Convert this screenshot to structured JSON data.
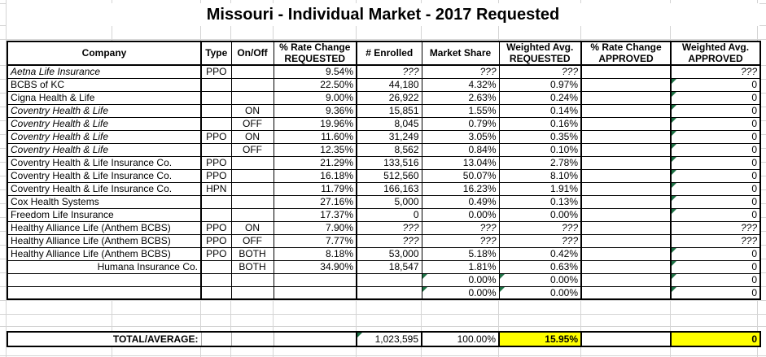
{
  "title": "Missouri - Individual Market - 2017 Requested",
  "colors": {
    "highlight": "#FFFF00",
    "triangle": "#1E7145",
    "gridline": "#D4D4D4"
  },
  "table": {
    "headers": [
      "Company",
      "Type",
      "On/Off",
      "% Rate Change\nREQUESTED",
      "# Enrolled",
      "Market Share",
      "Weighted Avg.\nREQUESTED",
      "% Rate Change\nAPPROVED",
      "Weighted Avg.\nAPPROVED"
    ],
    "rows": [
      {
        "company": "Aetna Life Insurance",
        "type": "PPO",
        "onoff": "",
        "rate_req": "9.54%",
        "enrolled": "???",
        "share": "???",
        "wavg_req": "???",
        "rate_app": "",
        "wavg_app": "???",
        "italic": true,
        "triangles": []
      },
      {
        "company": "BCBS of KC",
        "type": "",
        "onoff": "",
        "rate_req": "22.50%",
        "enrolled": "44,180",
        "share": "4.32%",
        "wavg_req": "0.97%",
        "rate_app": "",
        "wavg_app": "0",
        "italic": false,
        "triangles": [
          "wavg_app"
        ]
      },
      {
        "company": "Cigna Health & Life",
        "type": "",
        "onoff": "",
        "rate_req": "9.00%",
        "enrolled": "26,922",
        "share": "2.63%",
        "wavg_req": "0.24%",
        "rate_app": "",
        "wavg_app": "0",
        "italic": false,
        "triangles": [
          "wavg_app"
        ]
      },
      {
        "company": "Coventry Health & Life",
        "type": "",
        "onoff": "ON",
        "rate_req": "9.36%",
        "enrolled": "15,851",
        "share": "1.55%",
        "wavg_req": "0.14%",
        "rate_app": "",
        "wavg_app": "0",
        "italic": true,
        "triangles": [
          "wavg_app"
        ]
      },
      {
        "company": "Coventry Health & Life",
        "type": "",
        "onoff": "OFF",
        "rate_req": "19.96%",
        "enrolled": "8,045",
        "share": "0.79%",
        "wavg_req": "0.16%",
        "rate_app": "",
        "wavg_app": "0",
        "italic": true,
        "triangles": [
          "wavg_app"
        ]
      },
      {
        "company": "Coventry Health & Life",
        "type": "PPO",
        "onoff": "ON",
        "rate_req": "11.60%",
        "enrolled": "31,249",
        "share": "3.05%",
        "wavg_req": "0.35%",
        "rate_app": "",
        "wavg_app": "0",
        "italic": true,
        "triangles": [
          "wavg_app"
        ]
      },
      {
        "company": "Coventry Health & Life",
        "type": "",
        "onoff": "OFF",
        "rate_req": "12.35%",
        "enrolled": "8,562",
        "share": "0.84%",
        "wavg_req": "0.10%",
        "rate_app": "",
        "wavg_app": "0",
        "italic": true,
        "triangles": [
          "wavg_app"
        ]
      },
      {
        "company": "Coventry Health & Life Insurance Co.",
        "type": "PPO",
        "onoff": "",
        "rate_req": "21.29%",
        "enrolled": "133,516",
        "share": "13.04%",
        "wavg_req": "2.78%",
        "rate_app": "",
        "wavg_app": "0",
        "italic": false,
        "triangles": [
          "wavg_app"
        ]
      },
      {
        "company": "Coventry Health & Life Insurance Co.",
        "type": "PPO",
        "onoff": "",
        "rate_req": "16.18%",
        "enrolled": "512,560",
        "share": "50.07%",
        "wavg_req": "8.10%",
        "rate_app": "",
        "wavg_app": "0",
        "italic": false,
        "triangles": [
          "wavg_app"
        ]
      },
      {
        "company": "Coventry Health & Life Insurance Co.",
        "type": "HPN",
        "onoff": "",
        "rate_req": "11.79%",
        "enrolled": "166,163",
        "share": "16.23%",
        "wavg_req": "1.91%",
        "rate_app": "",
        "wavg_app": "0",
        "italic": false,
        "triangles": [
          "wavg_app"
        ]
      },
      {
        "company": "Cox Health Systems",
        "type": "",
        "onoff": "",
        "rate_req": "27.16%",
        "enrolled": "5,000",
        "share": "0.49%",
        "wavg_req": "0.13%",
        "rate_app": "",
        "wavg_app": "0",
        "italic": false,
        "triangles": [
          "wavg_app"
        ]
      },
      {
        "company": "Freedom Life Insurance",
        "type": "",
        "onoff": "",
        "rate_req": "17.37%",
        "enrolled": "0",
        "share": "0.00%",
        "wavg_req": "0.00%",
        "rate_app": "",
        "wavg_app": "0",
        "italic": false,
        "triangles": [
          "wavg_app"
        ]
      },
      {
        "company": "Healthy Alliance Life (Anthem BCBS)",
        "type": "PPO",
        "onoff": "ON",
        "rate_req": "7.90%",
        "enrolled": "???",
        "share": "???",
        "wavg_req": "???",
        "rate_app": "",
        "wavg_app": "???",
        "italic": false,
        "triangles": []
      },
      {
        "company": "Healthy Alliance Life (Anthem BCBS)",
        "type": "PPO",
        "onoff": "OFF",
        "rate_req": "7.77%",
        "enrolled": "???",
        "share": "???",
        "wavg_req": "???",
        "rate_app": "",
        "wavg_app": "???",
        "italic": false,
        "triangles": []
      },
      {
        "company": "Healthy Alliance Life (Anthem BCBS)",
        "type": "PPO",
        "onoff": "BOTH",
        "rate_req": "8.18%",
        "enrolled": "53,000",
        "share": "5.18%",
        "wavg_req": "0.42%",
        "rate_app": "",
        "wavg_app": "0",
        "italic": false,
        "triangles": [
          "wavg_app"
        ]
      },
      {
        "company": "Humana Insurance Co.",
        "type": "",
        "onoff": "BOTH",
        "rate_req": "34.90%",
        "enrolled": "18,547",
        "share": "1.81%",
        "wavg_req": "0.63%",
        "rate_app": "",
        "wavg_app": "0",
        "italic": false,
        "company_align": "right",
        "triangles": [
          "wavg_app"
        ]
      },
      {
        "company": "",
        "type": "",
        "onoff": "",
        "rate_req": "",
        "enrolled": "",
        "share": "0.00%",
        "wavg_req": "0.00%",
        "rate_app": "",
        "wavg_app": "0",
        "italic": false,
        "triangles": [
          "share",
          "wavg_req",
          "wavg_app"
        ]
      },
      {
        "company": "",
        "type": "",
        "onoff": "",
        "rate_req": "",
        "enrolled": "",
        "share": "0.00%",
        "wavg_req": "0.00%",
        "rate_app": "",
        "wavg_app": "0",
        "italic": false,
        "triangles": [
          "share",
          "wavg_req",
          "wavg_app"
        ]
      }
    ]
  },
  "total_row": {
    "label": "TOTAL/AVERAGE:",
    "enrolled": "1,023,595",
    "share": "100.00%",
    "wavg_req": "15.95%",
    "rate_app": "",
    "wavg_app": "0",
    "triangles": [
      "enrolled"
    ]
  }
}
